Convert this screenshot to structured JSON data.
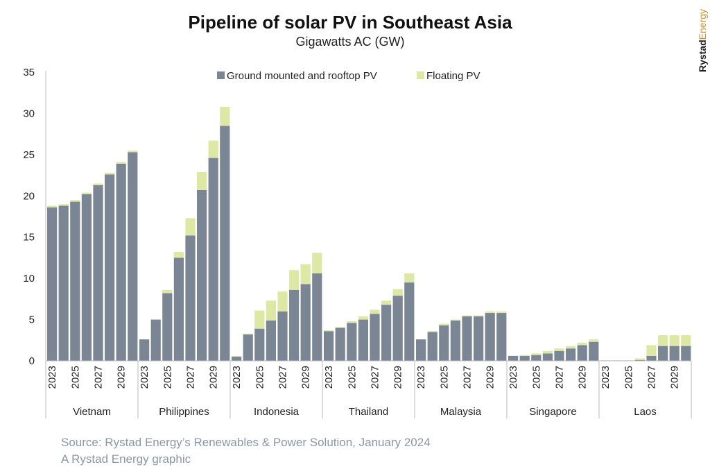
{
  "chart_data": {
    "type": "bar",
    "stacked": true,
    "title": "Pipeline of solar PV in Southeast Asia",
    "subtitle": "Gigawatts AC (GW)",
    "xlabel": "",
    "ylabel": "",
    "ylim": [
      0,
      35
    ],
    "yticks": [
      "0",
      "5",
      "10",
      "15",
      "20",
      "25",
      "30",
      "35"
    ],
    "year_labels": [
      "2023",
      "2025",
      "2027",
      "2029"
    ],
    "legend_position": "top-center",
    "legend": [
      "Ground mounted and rooftop PV",
      "Floating PV"
    ],
    "colors": {
      "ground": "#7b8694",
      "floating": "#dde8a4"
    },
    "groups": [
      {
        "name": "Vietnam",
        "years": [
          2023,
          2024,
          2025,
          2026,
          2027,
          2028,
          2029,
          2030
        ],
        "series": [
          {
            "name": "Ground mounted and rooftop PV",
            "values": [
              18.6,
              18.8,
              19.3,
              20.2,
              21.3,
              22.6,
              23.9,
              25.3
            ]
          },
          {
            "name": "Floating PV",
            "values": [
              0.2,
              0.2,
              0.2,
              0.2,
              0.2,
              0.2,
              0.2,
              0.2
            ]
          }
        ]
      },
      {
        "name": "Philippines",
        "years": [
          2023,
          2024,
          2025,
          2026,
          2027,
          2028,
          2029,
          2030
        ],
        "series": [
          {
            "name": "Ground mounted and rooftop PV",
            "values": [
              2.6,
              5.0,
              8.2,
              12.5,
              15.2,
              20.7,
              24.6,
              28.5
            ]
          },
          {
            "name": "Floating PV",
            "values": [
              0.0,
              0.0,
              0.4,
              0.7,
              2.1,
              2.2,
              2.1,
              2.3
            ]
          }
        ]
      },
      {
        "name": "Indonesia",
        "years": [
          2023,
          2024,
          2025,
          2026,
          2027,
          2028,
          2029,
          2030
        ],
        "series": [
          {
            "name": "Ground mounted and rooftop PV",
            "values": [
              0.5,
              3.2,
              3.9,
              4.9,
              6.0,
              8.6,
              9.3,
              10.6
            ]
          },
          {
            "name": "Floating PV",
            "values": [
              0.1,
              0.1,
              2.2,
              2.4,
              2.4,
              2.4,
              2.4,
              2.5
            ]
          }
        ]
      },
      {
        "name": "Thailand",
        "years": [
          2023,
          2024,
          2025,
          2026,
          2027,
          2028,
          2029,
          2030
        ],
        "series": [
          {
            "name": "Ground mounted and rooftop PV",
            "values": [
              3.6,
              4.0,
              4.6,
              5.0,
              5.7,
              6.8,
              7.9,
              9.5
            ]
          },
          {
            "name": "Floating PV",
            "values": [
              0.1,
              0.1,
              0.2,
              0.4,
              0.5,
              0.5,
              0.8,
              1.1
            ]
          }
        ]
      },
      {
        "name": "Malaysia",
        "years": [
          2023,
          2024,
          2025,
          2026,
          2027,
          2028,
          2029,
          2030
        ],
        "series": [
          {
            "name": "Ground mounted and rooftop PV",
            "values": [
              2.6,
              3.5,
              4.3,
              4.9,
              5.4,
              5.4,
              5.8,
              5.8
            ]
          },
          {
            "name": "Floating PV",
            "values": [
              0.0,
              0.1,
              0.2,
              0.1,
              0.1,
              0.1,
              0.2,
              0.2
            ]
          }
        ]
      },
      {
        "name": "Singapore",
        "years": [
          2023,
          2024,
          2025,
          2026,
          2027,
          2028,
          2029,
          2030
        ],
        "series": [
          {
            "name": "Ground mounted and rooftop PV",
            "values": [
              0.6,
              0.6,
              0.7,
              0.9,
              1.2,
              1.5,
              1.9,
              2.3
            ]
          },
          {
            "name": "Floating PV",
            "values": [
              0.0,
              0.1,
              0.2,
              0.3,
              0.3,
              0.3,
              0.3,
              0.3
            ]
          }
        ]
      },
      {
        "name": "Laos",
        "years": [
          2023,
          2024,
          2025,
          2026,
          2027,
          2028,
          2029,
          2030
        ],
        "series": [
          {
            "name": "Ground mounted and rooftop PV",
            "values": [
              0.05,
              0.05,
              0.05,
              0.1,
              0.6,
              1.8,
              1.8,
              1.8
            ]
          },
          {
            "name": "Floating PV",
            "values": [
              0.0,
              0.0,
              0.0,
              0.2,
              1.3,
              1.3,
              1.3,
              1.3
            ]
          }
        ]
      }
    ]
  },
  "source": "Source: Rystad Energy’s Renewables & Power Solution, January 2024",
  "credit": "A Rystad Energy graphic",
  "brand": {
    "part1": "Rystad",
    "part2": "Energy"
  }
}
